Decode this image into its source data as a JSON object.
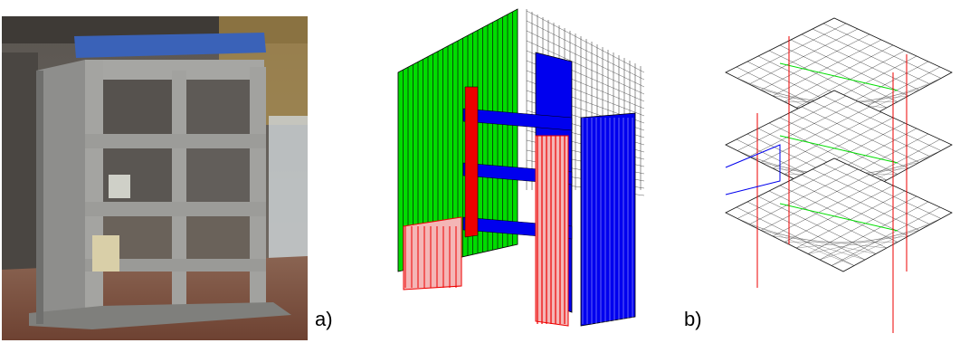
{
  "labels": {
    "a": "a)",
    "b": "b)"
  },
  "panels": {
    "photo": {
      "icon": "building-photo"
    },
    "fe_model": {
      "icon": "wireframe-model"
    },
    "slab_model": {
      "icon": "slab-mesh-model"
    }
  },
  "colors": {
    "green": "#00dd00",
    "blue": "#0000ee",
    "red": "#ee0000",
    "pink": "#f4b6b6",
    "concrete": "#9a9a98",
    "floor": "#8a5a44"
  }
}
